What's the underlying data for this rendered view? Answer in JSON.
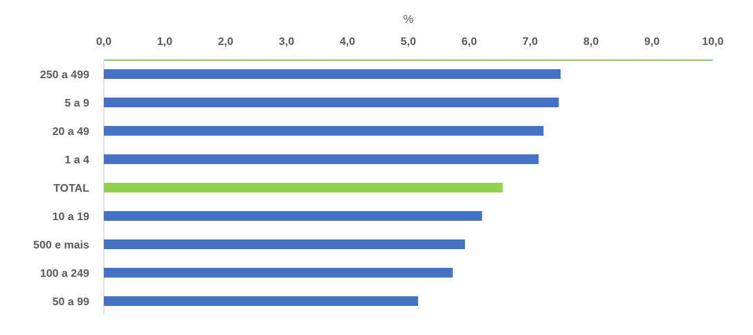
{
  "chart_data": {
    "type": "bar",
    "orientation": "horizontal",
    "xlabel": "%",
    "ylabel": "",
    "xlim": [
      0,
      10
    ],
    "x_ticks": [
      "0,0",
      "1,0",
      "2,0",
      "3,0",
      "4,0",
      "5,0",
      "6,0",
      "7,0",
      "8,0",
      "9,0",
      "10,0"
    ],
    "categories": [
      "250 a 499",
      "5 a 9",
      "20 a 49",
      "1 a 4",
      "TOTAL",
      "10 a 19",
      "500 e mais",
      "100 a 249",
      "50 a 99"
    ],
    "values": [
      7.5,
      7.47,
      7.22,
      7.14,
      6.55,
      6.21,
      5.93,
      5.73,
      5.16
    ],
    "highlight_category": "TOTAL",
    "colors": {
      "bar": "#4472C4",
      "highlight": "#92D050",
      "axis_top": "#70AD47",
      "axis_left": "#D9D9D9"
    },
    "axis_position": "top",
    "grid": false,
    "legend": "none"
  }
}
